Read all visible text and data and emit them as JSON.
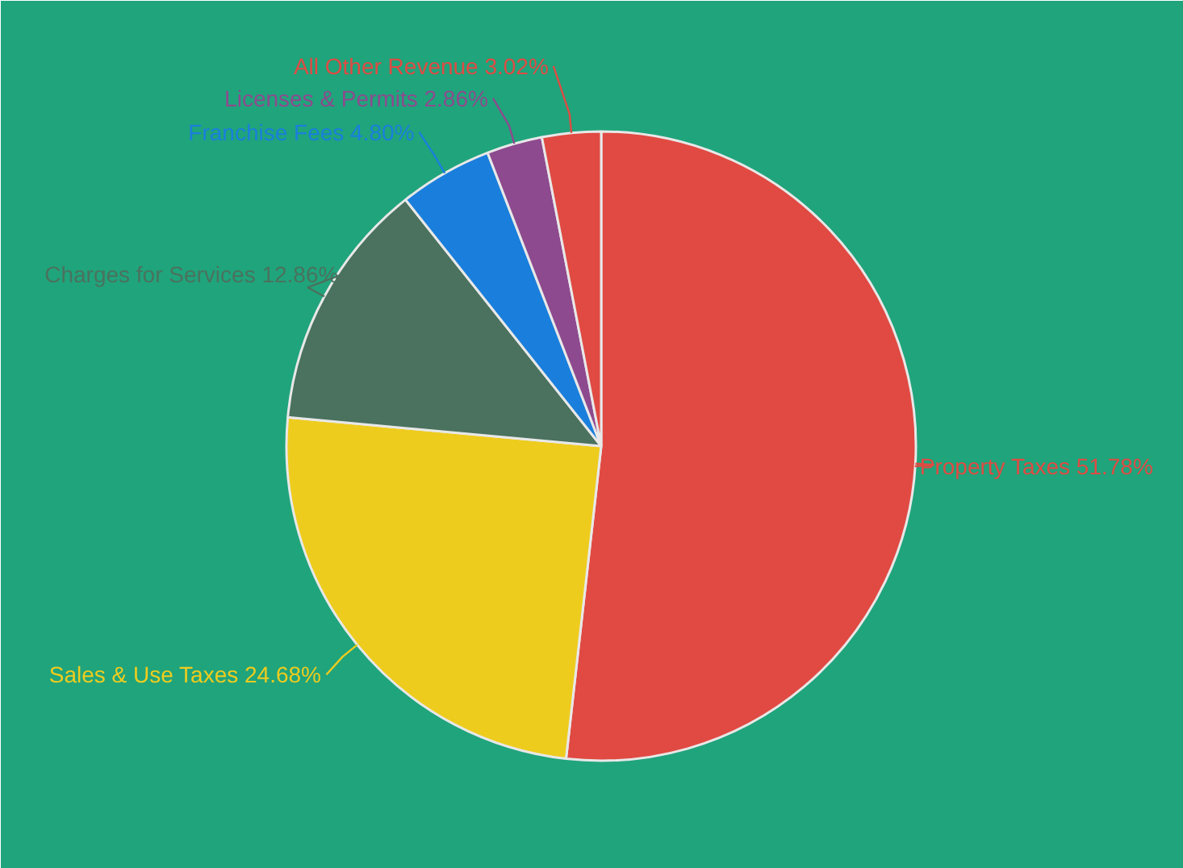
{
  "chart_data": {
    "type": "pie",
    "categories": [
      "Property Taxes",
      "Sales & Use Taxes",
      "Charges for Services",
      "Franchise Fees",
      "Licenses & Permits",
      "All Other Revenue"
    ],
    "values": [
      51.78,
      24.68,
      12.86,
      4.8,
      2.86,
      3.02
    ],
    "value_labels": [
      "51.78%",
      "24.68%",
      "12.86%",
      "4.80%",
      "2.86%",
      "3.02%"
    ],
    "colors": [
      "#e04a42",
      "#eecc1e",
      "#4a725e",
      "#1a7fdc",
      "#8e4a8e",
      "#e04a42"
    ]
  }
}
